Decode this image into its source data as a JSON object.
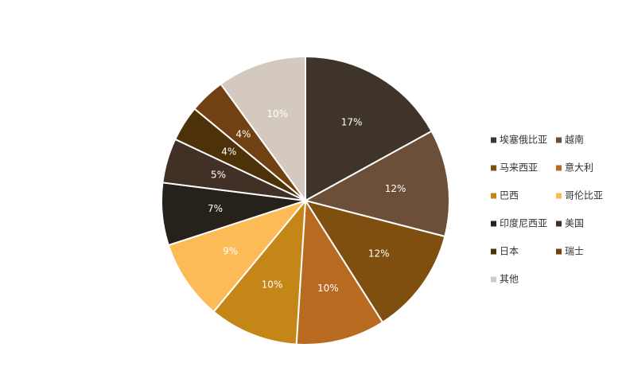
{
  "chart_data": {
    "type": "pie",
    "categories": [
      "埃塞俄比亚",
      "越南",
      "马来西亚",
      "意大利",
      "巴西",
      "哥伦比亚",
      "印度尼西亚",
      "美国",
      "日本",
      "瑞士",
      "其他"
    ],
    "values": [
      17,
      12,
      12,
      10,
      10,
      9,
      7,
      5,
      4,
      4,
      10
    ],
    "value_labels": [
      "17%",
      "12%",
      "12%",
      "10%",
      "10%",
      "9%",
      "7%",
      "5%",
      "4%",
      "4%",
      "10%"
    ],
    "colors": [
      "#3f3429",
      "#6b4f39",
      "#7f4f10",
      "#b96a21",
      "#c48616",
      "#fdbb57",
      "#27211c",
      "#403026",
      "#4d3109",
      "#724113",
      "#d3c9be"
    ],
    "legend": "right"
  }
}
